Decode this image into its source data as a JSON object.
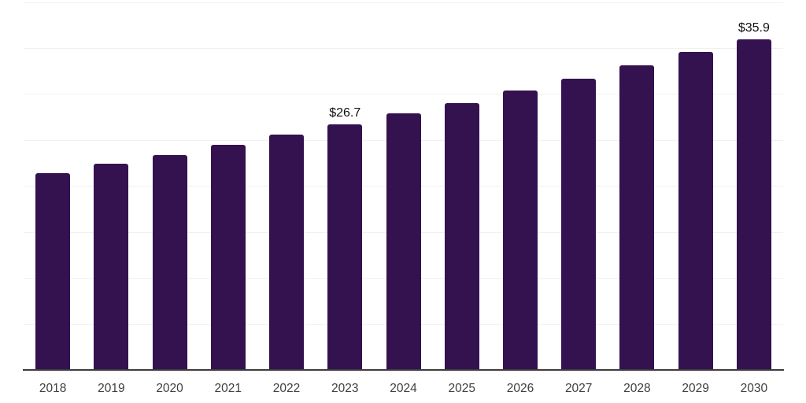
{
  "colors": {
    "background": "#ffffff",
    "bar": "#34114f",
    "grid": "#f1f1f1",
    "axis": "#3d3d3d",
    "tick_label": "#3f3f3f",
    "data_label": "#111111"
  },
  "chart_data": {
    "type": "bar",
    "title": "",
    "xlabel": "",
    "ylabel": "",
    "categories": [
      "2018",
      "2019",
      "2020",
      "2021",
      "2022",
      "2023",
      "2024",
      "2025",
      "2026",
      "2027",
      "2028",
      "2029",
      "2030"
    ],
    "values": [
      21.4,
      22.4,
      23.4,
      24.5,
      25.6,
      26.7,
      27.9,
      29.0,
      30.4,
      31.7,
      33.1,
      34.6,
      35.9
    ],
    "data_labels": [
      "",
      "",
      "",
      "",
      "",
      "$26.7",
      "",
      "",
      "",
      "",
      "",
      "",
      "$35.9"
    ],
    "ylim": [
      0,
      40
    ],
    "grid_step": 5,
    "grid": true,
    "legend": false,
    "y_tick_labels_visible": false
  }
}
